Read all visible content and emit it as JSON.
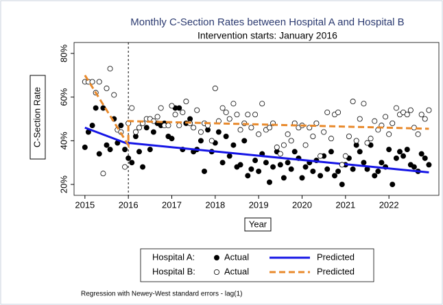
{
  "chart_data": {
    "type": "scatter",
    "title": "Monthly C-Section Rates between Hospital A and Hospital B",
    "subtitle": "Intervention starts: January 2016",
    "x_label": "Year",
    "y_label": "C-Section Rate",
    "footnote": "Regression with Newey-West standard errors - lag(1)",
    "xlim": [
      2014.75,
      2023.15
    ],
    "ylim": [
      15,
      85
    ],
    "xticks": [
      2015,
      2016,
      2017,
      2018,
      2019,
      2020,
      2021,
      2022
    ],
    "yticks": [
      {
        "value": 20,
        "label": "20%"
      },
      {
        "value": 40,
        "label": "40%"
      },
      {
        "value": 60,
        "label": "60%"
      },
      {
        "value": 80,
        "label": "80%"
      }
    ],
    "xline": 2016,
    "x": [
      2015,
      2015.08,
      2015.17,
      2015.25,
      2015.33,
      2015.42,
      2015.5,
      2015.58,
      2015.67,
      2015.75,
      2015.83,
      2015.92,
      2016,
      2016.08,
      2016.17,
      2016.25,
      2016.33,
      2016.42,
      2016.5,
      2016.58,
      2016.67,
      2016.75,
      2016.83,
      2016.92,
      2017,
      2017.08,
      2017.17,
      2017.25,
      2017.33,
      2017.42,
      2017.5,
      2017.58,
      2017.67,
      2017.75,
      2017.83,
      2017.92,
      2018,
      2018.08,
      2018.17,
      2018.25,
      2018.33,
      2018.42,
      2018.5,
      2018.58,
      2018.67,
      2018.75,
      2018.83,
      2018.92,
      2019,
      2019.08,
      2019.17,
      2019.25,
      2019.33,
      2019.42,
      2019.5,
      2019.58,
      2019.67,
      2019.75,
      2019.83,
      2019.92,
      2020,
      2020.08,
      2020.17,
      2020.25,
      2020.33,
      2020.42,
      2020.5,
      2020.58,
      2020.67,
      2020.75,
      2020.83,
      2020.92,
      2021,
      2021.08,
      2021.17,
      2021.25,
      2021.33,
      2021.42,
      2021.5,
      2021.58,
      2021.67,
      2021.75,
      2021.83,
      2021.92,
      2022,
      2022.08,
      2022.17,
      2022.25,
      2022.33,
      2022.42,
      2022.5,
      2022.58,
      2022.67,
      2022.75,
      2022.83,
      2022.92
    ],
    "series": [
      {
        "group": "Hospital A:",
        "name": "Actual",
        "kind": "points",
        "fill": "#000000",
        "values": [
          37,
          44,
          47,
          55,
          34,
          55,
          38,
          36,
          50,
          39,
          47,
          36,
          32,
          30,
          42,
          35,
          28,
          46,
          36,
          44,
          48,
          47,
          48,
          42,
          41,
          55,
          55,
          36,
          48,
          50,
          35,
          36,
          40,
          26,
          45,
          35,
          39,
          44,
          30,
          42,
          33,
          38,
          28,
          29,
          40,
          24,
          27,
          31,
          26,
          34,
          30,
          21,
          28,
          35,
          29,
          23,
          30,
          27,
          35,
          32,
          23,
          28,
          30,
          26,
          31,
          24,
          33,
          27,
          35,
          24,
          26,
          20,
          29,
          32,
          27,
          38,
          35,
          30,
          27,
          38,
          24,
          26,
          30,
          28,
          36,
          20,
          32,
          35,
          33,
          36,
          29,
          28,
          26,
          34,
          32,
          29
        ]
      },
      {
        "group": "Hospital A:",
        "name": "Predicted",
        "kind": "line",
        "color": "#1414e6",
        "dash": false,
        "x": [
          2015,
          2016,
          2016,
          2022.92
        ],
        "values": [
          46,
          38.5,
          39,
          25.5
        ]
      },
      {
        "group": "Hospital B:",
        "name": "Actual",
        "kind": "points",
        "fill": "#ffffff",
        "values": [
          67,
          67,
          67,
          62,
          67,
          25,
          64,
          73,
          61,
          45,
          44,
          28,
          48,
          55,
          44,
          46,
          48,
          50,
          50,
          49,
          51,
          55,
          47,
          47,
          56,
          52,
          47,
          53,
          58,
          48,
          46,
          54,
          44,
          48,
          47,
          40,
          64,
          49,
          55,
          53,
          50,
          57,
          52,
          45,
          48,
          52,
          46,
          52,
          43,
          57,
          45,
          46,
          48,
          37,
          34,
          38,
          43,
          40,
          48,
          46,
          47,
          38,
          46,
          42,
          48,
          33,
          44,
          53,
          41,
          52,
          53,
          29,
          33,
          42,
          58,
          40,
          50,
          57,
          39,
          41,
          49,
          45,
          47,
          51,
          43,
          48,
          55,
          52,
          53,
          52,
          54,
          46,
          43,
          52,
          50,
          54
        ]
      },
      {
        "group": "Hospital B:",
        "name": "Predicted",
        "kind": "line",
        "color": "#e8892b",
        "dash": true,
        "x": [
          2015,
          2016,
          2016,
          2022.92
        ],
        "values": [
          70,
          38,
          49,
          45.5
        ]
      }
    ]
  }
}
